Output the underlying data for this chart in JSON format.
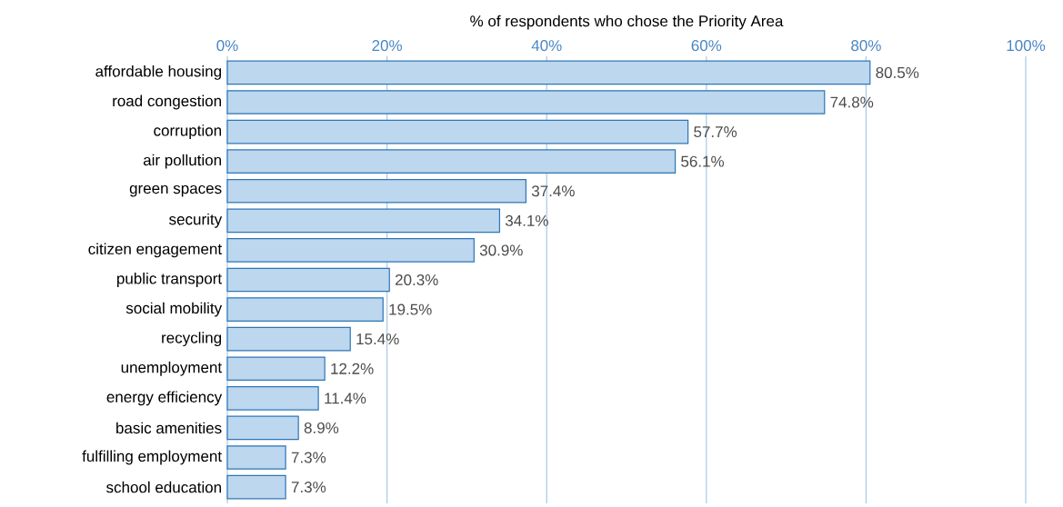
{
  "chart_data": {
    "type": "bar",
    "orientation": "horizontal",
    "xlabel": "% of respondents who chose the Priority Area",
    "categories": [
      "affordable housing",
      "road congestion",
      "corruption",
      "air pollution",
      "green spaces",
      "security",
      "citizen engagement",
      "public transport",
      "social mobility",
      "recycling",
      "unemployment",
      "energy efficiency",
      "basic amenities",
      "fulfilling employment",
      "school education"
    ],
    "values": [
      80.5,
      74.8,
      57.7,
      56.1,
      37.4,
      34.1,
      30.9,
      20.3,
      19.5,
      15.4,
      12.2,
      11.4,
      8.9,
      7.3,
      7.3
    ],
    "value_labels": [
      "80.5%",
      "74.8%",
      "57.7%",
      "56.1%",
      "37.4%",
      "34.1%",
      "30.9%",
      "20.3%",
      "19.5%",
      "15.4%",
      "12.2%",
      "11.4%",
      "8.9%",
      "7.3%",
      "7.3%"
    ],
    "color": "#bdd7ee",
    "xlim": [
      0,
      100
    ],
    "xticks": [
      {
        "value": 0,
        "label": "0%"
      },
      {
        "value": 20,
        "label": "20%"
      },
      {
        "value": 40,
        "label": "40%"
      },
      {
        "value": 60,
        "label": "60%"
      },
      {
        "value": 80,
        "label": "80%"
      },
      {
        "value": 100,
        "label": "100%"
      }
    ],
    "grid": "x"
  }
}
